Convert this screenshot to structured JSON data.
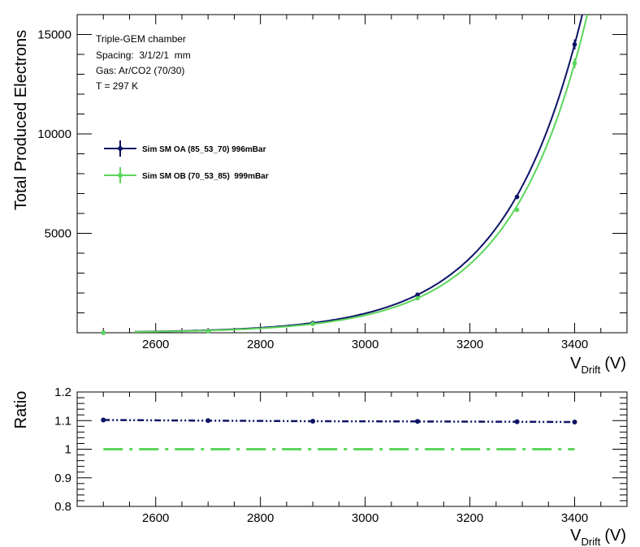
{
  "chart_data": [
    {
      "type": "scatter",
      "ylabel": "Total Produced Electrons",
      "xlabel_main": "V",
      "xlabel_sub": "Drift",
      "xlabel_unit": "(V)",
      "xlim": [
        2450,
        3500
      ],
      "ylim": [
        0,
        16000
      ],
      "xticks": [
        2600,
        2800,
        3000,
        3200,
        3400
      ],
      "xtick_labels": [
        "2600",
        "2800",
        "3000",
        "3200",
        "3400"
      ],
      "yticks": [
        5000,
        10000,
        15000
      ],
      "ytick_labels": [
        "5000",
        "10000",
        "15000"
      ],
      "annotations": [
        "Triple-GEM chamber",
        "Spacing:  3/1/2/1  mm",
        "Gas: Ar/CO2 (70/30)",
        "T = 297 K"
      ],
      "legend_position": "upper-left",
      "series": [
        {
          "name": "Sim SM OA (85_53_70) 996mBar",
          "color": "#0d1466",
          "x": [
            2500,
            2700,
            2900,
            3100,
            3290,
            3400
          ],
          "y": [
            1,
            80,
            490,
            1910,
            6830,
            14500
          ],
          "yerr": [
            0,
            10,
            20,
            40,
            80,
            250
          ],
          "fit": "exponential"
        },
        {
          "name": "Sim SM OB (70_53_85)  999mBar",
          "color": "#5cd65c",
          "x": [
            2500,
            2700,
            2900,
            3100,
            3290,
            3400
          ],
          "y": [
            1,
            73,
            450,
            1740,
            6180,
            13550
          ],
          "yerr": [
            0,
            10,
            20,
            40,
            80,
            250
          ],
          "fit": "exponential"
        }
      ]
    },
    {
      "type": "line",
      "ylabel": "Ratio",
      "xlabel_main": "V",
      "xlabel_sub": "Drift",
      "xlabel_unit": "(V)",
      "xlim": [
        2450,
        3500
      ],
      "ylim": [
        0.8,
        1.2
      ],
      "xticks": [
        2600,
        2800,
        3000,
        3200,
        3400
      ],
      "xtick_labels": [
        "2600",
        "2800",
        "3000",
        "3200",
        "3400"
      ],
      "yticks": [
        0.8,
        0.9,
        1.0,
        1.1,
        1.2
      ],
      "ytick_labels": [
        "0.8",
        "0.9",
        "1",
        "1.1",
        "1.2"
      ],
      "series": [
        {
          "color": "#0d1466",
          "x": [
            2500,
            2700,
            2900,
            3100,
            3290,
            3400
          ],
          "y": [
            1.102,
            1.1,
            1.098,
            1.097,
            1.096,
            1.095
          ]
        },
        {
          "color": "#5cd65c",
          "x": [
            2500,
            3400
          ],
          "y": [
            1.0,
            1.0
          ]
        }
      ]
    }
  ]
}
